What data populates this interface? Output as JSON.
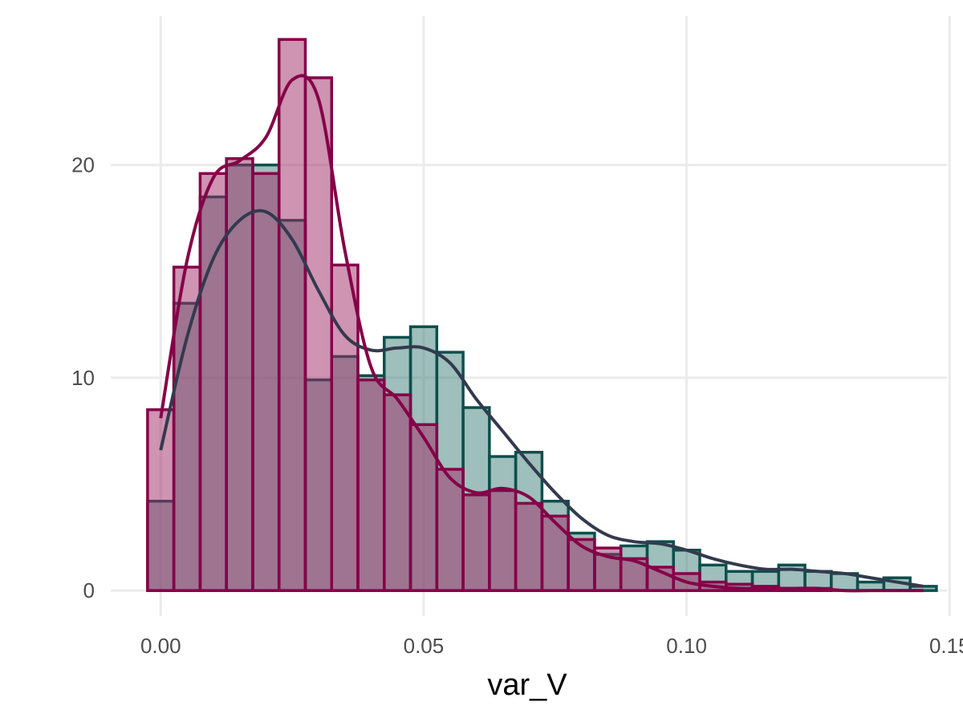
{
  "chart_data": {
    "type": "histogram",
    "title": "",
    "xlabel": "var_V",
    "ylabel": "",
    "xlim": [
      -0.0095,
      0.1495
    ],
    "ylim": [
      -1.2,
      27
    ],
    "x_ticks": [
      0.0,
      0.05,
      0.1,
      0.15
    ],
    "x_tick_labels": [
      "0.00",
      "0.05",
      "0.10",
      "0.15"
    ],
    "y_ticks": [
      0,
      10,
      20
    ],
    "y_tick_labels": [
      "0",
      "10",
      "20"
    ],
    "grid": true,
    "legend": "none",
    "bin_width": 0.005,
    "bin_centers": [
      0.0,
      0.005,
      0.01,
      0.015,
      0.02,
      0.025,
      0.03,
      0.035,
      0.04,
      0.045,
      0.05,
      0.055,
      0.06,
      0.065,
      0.07,
      0.075,
      0.08,
      0.085,
      0.09,
      0.095,
      0.1,
      0.105,
      0.11,
      0.115,
      0.12,
      0.125,
      0.13,
      0.135,
      0.14,
      0.145
    ],
    "series": [
      {
        "name": "teal",
        "fill": "#3d7f78",
        "outline": "#0c4f4c",
        "counts": [
          4.2,
          13.5,
          18.5,
          20.0,
          20.0,
          17.4,
          9.9,
          11.0,
          10.1,
          11.9,
          12.4,
          11.2,
          8.6,
          6.3,
          6.5,
          4.2,
          2.7,
          1.7,
          2.1,
          2.3,
          1.9,
          1.2,
          0.9,
          0.9,
          1.2,
          0.9,
          0.8,
          0.4,
          0.6,
          0.2
        ],
        "density": [
          6.6,
          11.9,
          15.6,
          17.4,
          17.8,
          16.5,
          14.1,
          12.0,
          11.3,
          11.4,
          11.4,
          10.7,
          9.0,
          7.5,
          6.0,
          4.6,
          3.4,
          2.6,
          2.3,
          2.2,
          1.9,
          1.5,
          1.2,
          1.0,
          1.0,
          0.9,
          0.8,
          0.6,
          0.4,
          0.2
        ]
      },
      {
        "name": "magenta",
        "fill": "#9e2966",
        "outline": "#850048",
        "counts": [
          8.5,
          15.2,
          19.6,
          20.3,
          19.6,
          25.9,
          24.1,
          15.3,
          9.9,
          9.2,
          7.8,
          5.7,
          4.5,
          4.7,
          4.1,
          3.5,
          2.4,
          2.0,
          1.5,
          1.1,
          0.8,
          0.4,
          0.3,
          0.2,
          0.1,
          0.1,
          0.0,
          0.0,
          0.0,
          0.0
        ],
        "density": [
          8.1,
          15.5,
          19.4,
          20.2,
          21.3,
          24.0,
          23.1,
          16.0,
          10.5,
          9.0,
          7.2,
          5.3,
          4.6,
          4.8,
          4.4,
          3.2,
          2.1,
          1.6,
          1.4,
          0.9,
          0.4,
          0.2,
          0.1,
          0.1,
          0.1,
          0.1,
          0.0,
          0.0,
          0.0,
          0.0
        ]
      }
    ]
  }
}
